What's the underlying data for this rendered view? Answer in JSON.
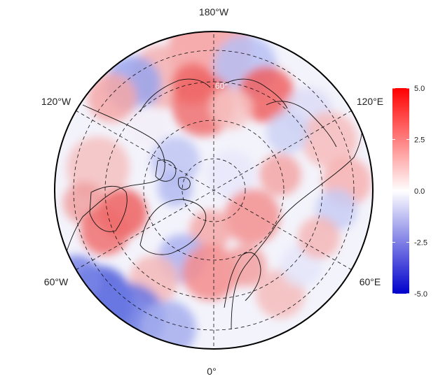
{
  "map": {
    "projection": "north polar stereographic",
    "lon_labels": {
      "top": "180°W",
      "upper_left": "120°W",
      "upper_right": "120°E",
      "lower_left": "60°W",
      "lower_right": "60°E",
      "bottom": "0°"
    },
    "lat_label": "60°",
    "grid": true
  },
  "colorbar": {
    "ticks": [
      "5.0",
      "2.5",
      "0.0",
      "-2.5",
      "-5.0"
    ],
    "tick_values": [
      5.0,
      2.5,
      0.0,
      -2.5,
      -5.0
    ],
    "range": [
      -5.0,
      5.0
    ],
    "colors": {
      "max": "#ff0000",
      "mid": "#ffffff",
      "min": "#0000cc"
    }
  }
}
